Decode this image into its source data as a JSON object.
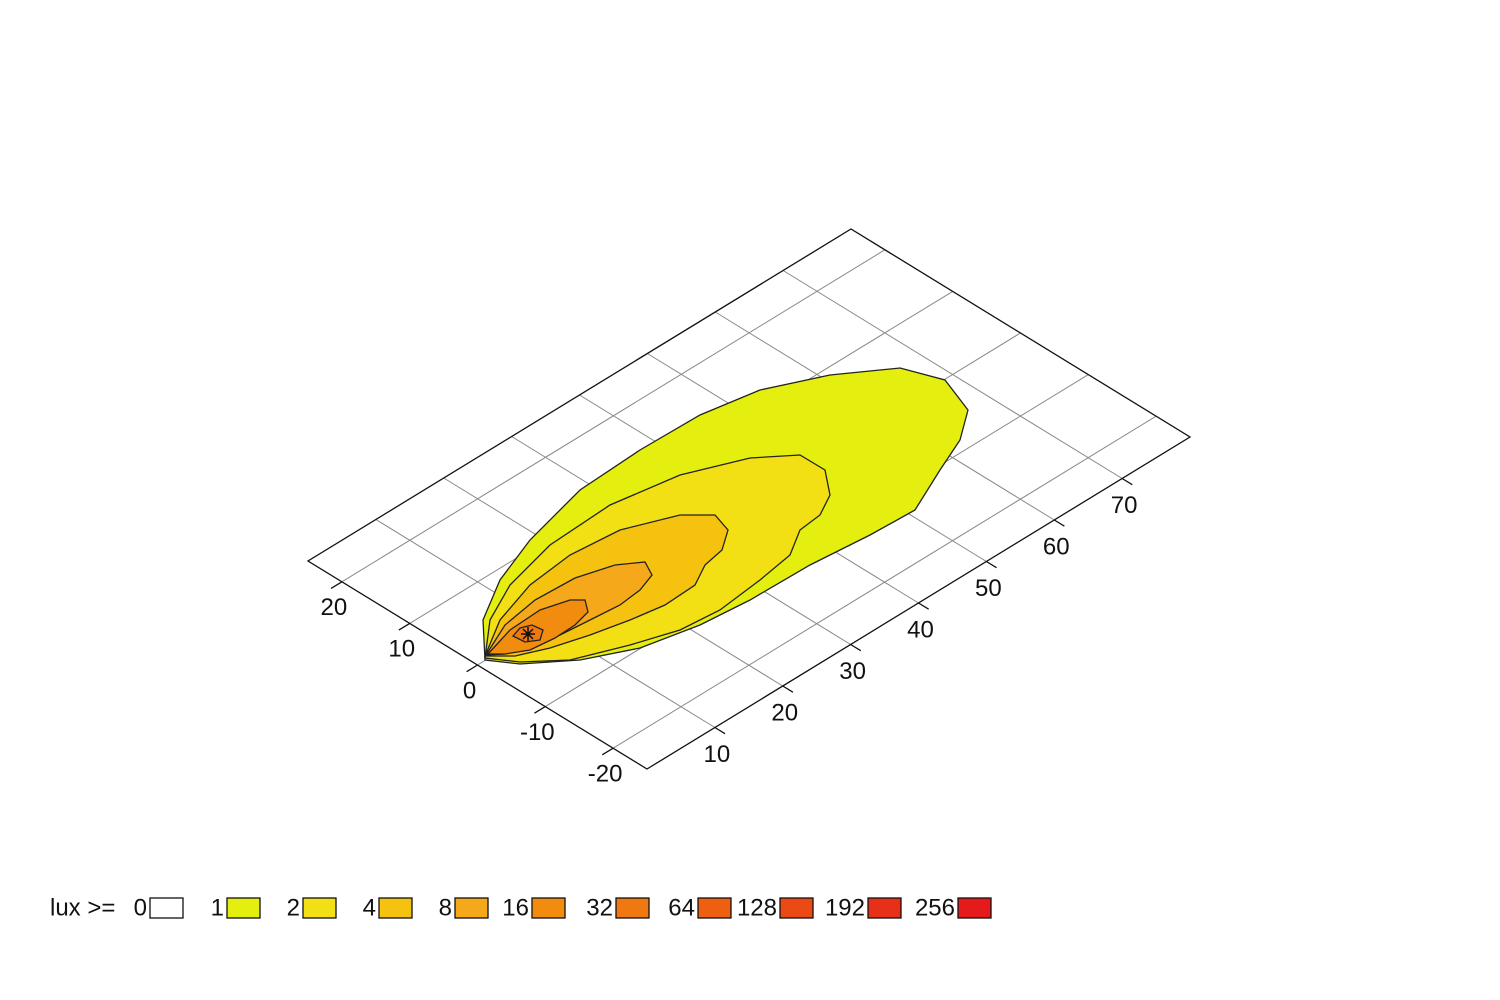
{
  "chart_data": {
    "type": "isolux",
    "xlim": [
      0,
      80
    ],
    "xticks": [
      10,
      20,
      30,
      40,
      50,
      60,
      70
    ],
    "ylim": [
      -25,
      25
    ],
    "yticks": [
      -20,
      -10,
      0,
      10,
      20
    ],
    "grid": true,
    "legend_title": "lux >=",
    "levels": [
      {
        "value": 0,
        "color": "#ffffff"
      },
      {
        "value": 1,
        "color": "#e5ef0f"
      },
      {
        "value": 2,
        "color": "#f2df14"
      },
      {
        "value": 4,
        "color": "#f5c30f"
      },
      {
        "value": 8,
        "color": "#f5a81a"
      },
      {
        "value": 16,
        "color": "#f28c0f"
      },
      {
        "value": 32,
        "color": "#f07810"
      },
      {
        "value": 64,
        "color": "#ee6010"
      },
      {
        "value": 128,
        "color": "#ec4a14"
      },
      {
        "value": 192,
        "color": "#e83018"
      },
      {
        "value": 256,
        "color": "#e51a1a"
      }
    ]
  }
}
